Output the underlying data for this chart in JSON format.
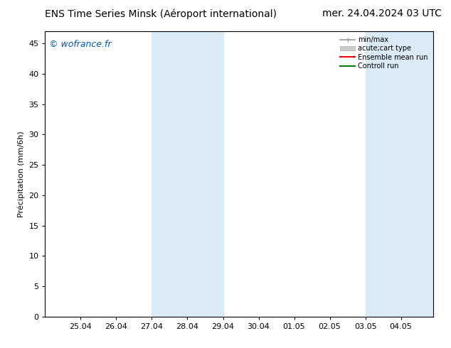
{
  "title_left": "ENS Time Series Minsk (Aéroport international)",
  "title_right": "mer. 24.04.2024 03 UTC",
  "ylabel": "Précipitation (mm/6h)",
  "watermark": "© wofrance.fr",
  "watermark_color": "#0055cc",
  "ylim": [
    0,
    47
  ],
  "yticks": [
    0,
    5,
    10,
    15,
    20,
    25,
    30,
    35,
    40,
    45
  ],
  "xtick_labels": [
    "25.04",
    "26.04",
    "27.04",
    "28.04",
    "29.04",
    "30.04",
    "01.05",
    "02.05",
    "03.05",
    "04.05"
  ],
  "xtick_positions": [
    1,
    2,
    3,
    4,
    5,
    6,
    7,
    8,
    9,
    10
  ],
  "xlim": [
    0,
    10.9
  ],
  "shade_color": "#daeaf7",
  "shaded_regions": [
    {
      "x_start": 3.0,
      "x_end": 5.0
    },
    {
      "x_start": 9.0,
      "x_end": 10.9
    }
  ],
  "legend_entries": [
    {
      "label": "min/max",
      "color": "#999999"
    },
    {
      "label": "acute;cart type",
      "color": "#cccccc"
    },
    {
      "label": "Ensemble mean run",
      "color": "#ff0000"
    },
    {
      "label": "Controll run",
      "color": "#008000"
    }
  ],
  "background_color": "#ffffff",
  "title_fontsize": 10,
  "axis_fontsize": 8,
  "tick_fontsize": 8,
  "watermark_fontsize": 9,
  "legend_fontsize": 7
}
